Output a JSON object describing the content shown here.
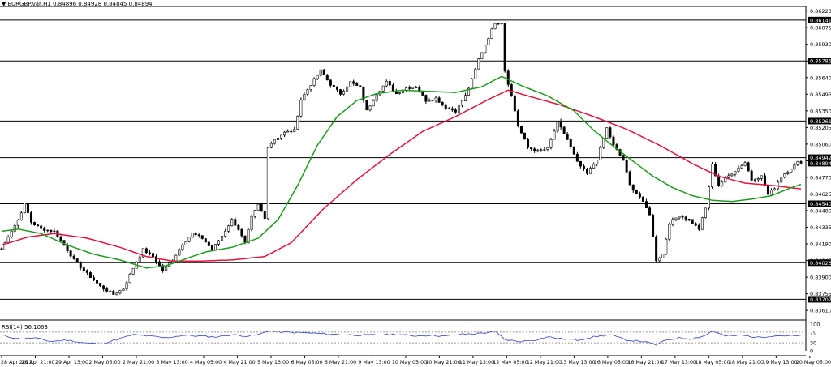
{
  "header": {
    "arrow": "▼",
    "symbol": "EURGBP.var,H1",
    "ohlc": [
      "0.84896",
      "0.84928",
      "0.84845",
      "0.84894"
    ]
  },
  "indicator": {
    "name": "RSI(14)",
    "value": "56.1063"
  },
  "colors": {
    "candle": "#000000",
    "ma_fast": "#1f9a1f",
    "ma_slow": "#e0143c",
    "rsi_line": "#2f40c8",
    "price_label_bg": "#000000",
    "price_label_text": "#ffffff"
  },
  "chart_data": {
    "type": "candlestick",
    "y_ticks": [
      0.8622,
      0.86075,
      0.8593,
      0.85785,
      0.8564,
      0.85495,
      0.8535,
      0.85205,
      0.8506,
      0.84915,
      0.8477,
      0.84625,
      0.8448,
      0.84335,
      0.8419,
      0.84045,
      0.839,
      0.83755,
      0.8361
    ],
    "y_tick_labels": [
      "0.86220",
      "0.86075",
      "0.85930",
      "0.85785",
      "0.85640",
      "0.85495",
      "0.85350",
      "0.85205",
      "0.85060",
      "0.84915",
      "0.84770",
      "0.84625",
      "0.84480",
      "0.84335",
      "0.84190",
      "0.84045",
      "0.83900",
      "0.83755",
      "0.83610"
    ],
    "ylim": [
      0.8359,
      0.8626
    ],
    "horizontal_levels": [
      0.86141,
      0.85785,
      0.85261,
      0.84942,
      0.8454,
      0.84026,
      0.83707
    ],
    "level_labels": [
      "0.86141",
      "0.85785",
      "0.85261",
      "0.84942",
      "0.84540",
      "0.84026",
      "0.83707"
    ],
    "current_price": 0.84894,
    "current_price_label": "0.84894",
    "x_tick_labels": [
      "28 Apr 2022",
      "28 Apr 21:00",
      "29 Apr 13:00",
      "2 May 05:00",
      "2 May 21:00",
      "3 May 13:00",
      "4 May 05:00",
      "4 May 21:00",
      "5 May 13:00",
      "6 May 05:00",
      "6 May 21:00",
      "9 May 13:00",
      "10 May 05:00",
      "10 May 21:00",
      "11 May 13:00",
      "12 May 05:00",
      "12 May 21:00",
      "13 May 13:00",
      "16 May 05:00",
      "16 May 21:00",
      "17 May 13:00",
      "18 May 05:00",
      "18 May 21:00",
      "19 May 13:00",
      "20 May 05:00"
    ],
    "anchors": [
      [
        0,
        0.8414
      ],
      [
        2,
        0.8426
      ],
      [
        5,
        0.844
      ],
      [
        7,
        0.8454
      ],
      [
        9,
        0.8438
      ],
      [
        12,
        0.8432
      ],
      [
        16,
        0.843
      ],
      [
        19,
        0.8418
      ],
      [
        22,
        0.8405
      ],
      [
        26,
        0.8393
      ],
      [
        30,
        0.8382
      ],
      [
        34,
        0.8375
      ],
      [
        37,
        0.838
      ],
      [
        40,
        0.8398
      ],
      [
        43,
        0.8414
      ],
      [
        46,
        0.8408
      ],
      [
        49,
        0.8396
      ],
      [
        52,
        0.8405
      ],
      [
        55,
        0.8419
      ],
      [
        58,
        0.8428
      ],
      [
        61,
        0.8424
      ],
      [
        64,
        0.8414
      ],
      [
        67,
        0.8426
      ],
      [
        70,
        0.844
      ],
      [
        72,
        0.8432
      ],
      [
        74,
        0.8419
      ],
      [
        76,
        0.8442
      ],
      [
        78,
        0.8453
      ],
      [
        80,
        0.8441
      ],
      [
        81,
        0.8504
      ],
      [
        83,
        0.851
      ],
      [
        86,
        0.8516
      ],
      [
        89,
        0.8518
      ],
      [
        91,
        0.8545
      ],
      [
        94,
        0.8558
      ],
      [
        97,
        0.857
      ],
      [
        100,
        0.8558
      ],
      [
        103,
        0.855
      ],
      [
        106,
        0.856
      ],
      [
        109,
        0.8555
      ],
      [
        111,
        0.8535
      ],
      [
        114,
        0.855
      ],
      [
        117,
        0.856
      ],
      [
        120,
        0.855
      ],
      [
        123,
        0.8555
      ],
      [
        126,
        0.8556
      ],
      [
        129,
        0.8544
      ],
      [
        132,
        0.8546
      ],
      [
        135,
        0.8538
      ],
      [
        138,
        0.8535
      ],
      [
        141,
        0.8548
      ],
      [
        143,
        0.8562
      ],
      [
        145,
        0.858
      ],
      [
        148,
        0.8599
      ],
      [
        150,
        0.8612
      ],
      [
        152,
        0.8612
      ],
      [
        153,
        0.857
      ],
      [
        155,
        0.8548
      ],
      [
        157,
        0.8522
      ],
      [
        160,
        0.8503
      ],
      [
        163,
        0.85
      ],
      [
        166,
        0.8502
      ],
      [
        169,
        0.8525
      ],
      [
        172,
        0.851
      ],
      [
        175,
        0.849
      ],
      [
        178,
        0.848
      ],
      [
        181,
        0.8493
      ],
      [
        184,
        0.852
      ],
      [
        186,
        0.8505
      ],
      [
        189,
        0.8492
      ],
      [
        191,
        0.847
      ],
      [
        194,
        0.846
      ],
      [
        197,
        0.8445
      ],
      [
        199,
        0.8405
      ],
      [
        201,
        0.841
      ],
      [
        203,
        0.8437
      ],
      [
        206,
        0.8444
      ],
      [
        209,
        0.844
      ],
      [
        212,
        0.8432
      ],
      [
        214,
        0.845
      ],
      [
        216,
        0.8488
      ],
      [
        218,
        0.847
      ],
      [
        220,
        0.8476
      ],
      [
        223,
        0.8483
      ],
      [
        226,
        0.849
      ],
      [
        228,
        0.8475
      ],
      [
        231,
        0.8478
      ],
      [
        233,
        0.8462
      ],
      [
        235,
        0.8468
      ],
      [
        237,
        0.8478
      ],
      [
        240,
        0.8485
      ],
      [
        242,
        0.849
      ],
      [
        243,
        0.8489
      ]
    ],
    "ma_fast_anchors": [
      [
        0,
        0.843
      ],
      [
        5,
        0.8432
      ],
      [
        12,
        0.8428
      ],
      [
        20,
        0.8418
      ],
      [
        28,
        0.841
      ],
      [
        36,
        0.8405
      ],
      [
        44,
        0.8398
      ],
      [
        50,
        0.84
      ],
      [
        56,
        0.8406
      ],
      [
        62,
        0.8412
      ],
      [
        70,
        0.8416
      ],
      [
        78,
        0.8424
      ],
      [
        84,
        0.844
      ],
      [
        90,
        0.847
      ],
      [
        96,
        0.8505
      ],
      [
        102,
        0.853
      ],
      [
        108,
        0.8544
      ],
      [
        114,
        0.855
      ],
      [
        122,
        0.8553
      ],
      [
        130,
        0.8552
      ],
      [
        138,
        0.8551
      ],
      [
        146,
        0.8556
      ],
      [
        152,
        0.8565
      ],
      [
        158,
        0.8557
      ],
      [
        166,
        0.8548
      ],
      [
        174,
        0.8535
      ],
      [
        180,
        0.8518
      ],
      [
        186,
        0.8504
      ],
      [
        192,
        0.8491
      ],
      [
        198,
        0.8478
      ],
      [
        204,
        0.8468
      ],
      [
        210,
        0.8461
      ],
      [
        216,
        0.8457
      ],
      [
        222,
        0.8456
      ],
      [
        228,
        0.8458
      ],
      [
        234,
        0.8461
      ],
      [
        240,
        0.8468
      ],
      [
        243,
        0.8471
      ]
    ],
    "ma_slow_anchors": [
      [
        0,
        0.8418
      ],
      [
        8,
        0.8425
      ],
      [
        16,
        0.8428
      ],
      [
        26,
        0.8424
      ],
      [
        36,
        0.8416
      ],
      [
        44,
        0.8408
      ],
      [
        52,
        0.8404
      ],
      [
        60,
        0.8404
      ],
      [
        70,
        0.8405
      ],
      [
        80,
        0.8408
      ],
      [
        88,
        0.842
      ],
      [
        98,
        0.845
      ],
      [
        108,
        0.8475
      ],
      [
        118,
        0.8497
      ],
      [
        128,
        0.8517
      ],
      [
        138,
        0.853
      ],
      [
        148,
        0.8545
      ],
      [
        154,
        0.8553
      ],
      [
        160,
        0.8548
      ],
      [
        170,
        0.854
      ],
      [
        180,
        0.853
      ],
      [
        190,
        0.8519
      ],
      [
        200,
        0.8505
      ],
      [
        210,
        0.8489
      ],
      [
        218,
        0.8478
      ],
      [
        226,
        0.8472
      ],
      [
        234,
        0.847
      ],
      [
        243,
        0.8467
      ]
    ],
    "rsi": {
      "ylim": [
        0,
        100
      ],
      "tick_labels": [
        "100",
        "70",
        "30",
        "0"
      ],
      "levels": [
        70,
        30
      ],
      "anchors": [
        [
          0,
          58
        ],
        [
          5,
          45
        ],
        [
          10,
          48
        ],
        [
          15,
          35
        ],
        [
          20,
          40
        ],
        [
          25,
          30
        ],
        [
          30,
          25
        ],
        [
          35,
          42
        ],
        [
          40,
          60
        ],
        [
          45,
          55
        ],
        [
          50,
          48
        ],
        [
          55,
          58
        ],
        [
          60,
          55
        ],
        [
          65,
          52
        ],
        [
          70,
          60
        ],
        [
          75,
          55
        ],
        [
          78,
          60
        ],
        [
          81,
          75
        ],
        [
          85,
          70
        ],
        [
          90,
          68
        ],
        [
          95,
          66
        ],
        [
          100,
          62
        ],
        [
          105,
          60
        ],
        [
          110,
          58
        ],
        [
          115,
          60
        ],
        [
          120,
          62
        ],
        [
          125,
          56
        ],
        [
          130,
          58
        ],
        [
          135,
          55
        ],
        [
          140,
          62
        ],
        [
          145,
          65
        ],
        [
          150,
          72
        ],
        [
          153,
          42
        ],
        [
          157,
          35
        ],
        [
          162,
          40
        ],
        [
          166,
          52
        ],
        [
          170,
          45
        ],
        [
          175,
          40
        ],
        [
          180,
          52
        ],
        [
          185,
          60
        ],
        [
          190,
          40
        ],
        [
          195,
          35
        ],
        [
          199,
          22
        ],
        [
          202,
          40
        ],
        [
          206,
          48
        ],
        [
          210,
          45
        ],
        [
          214,
          58
        ],
        [
          216,
          75
        ],
        [
          220,
          55
        ],
        [
          225,
          58
        ],
        [
          230,
          50
        ],
        [
          235,
          57
        ],
        [
          240,
          56
        ],
        [
          243,
          56
        ]
      ]
    }
  }
}
